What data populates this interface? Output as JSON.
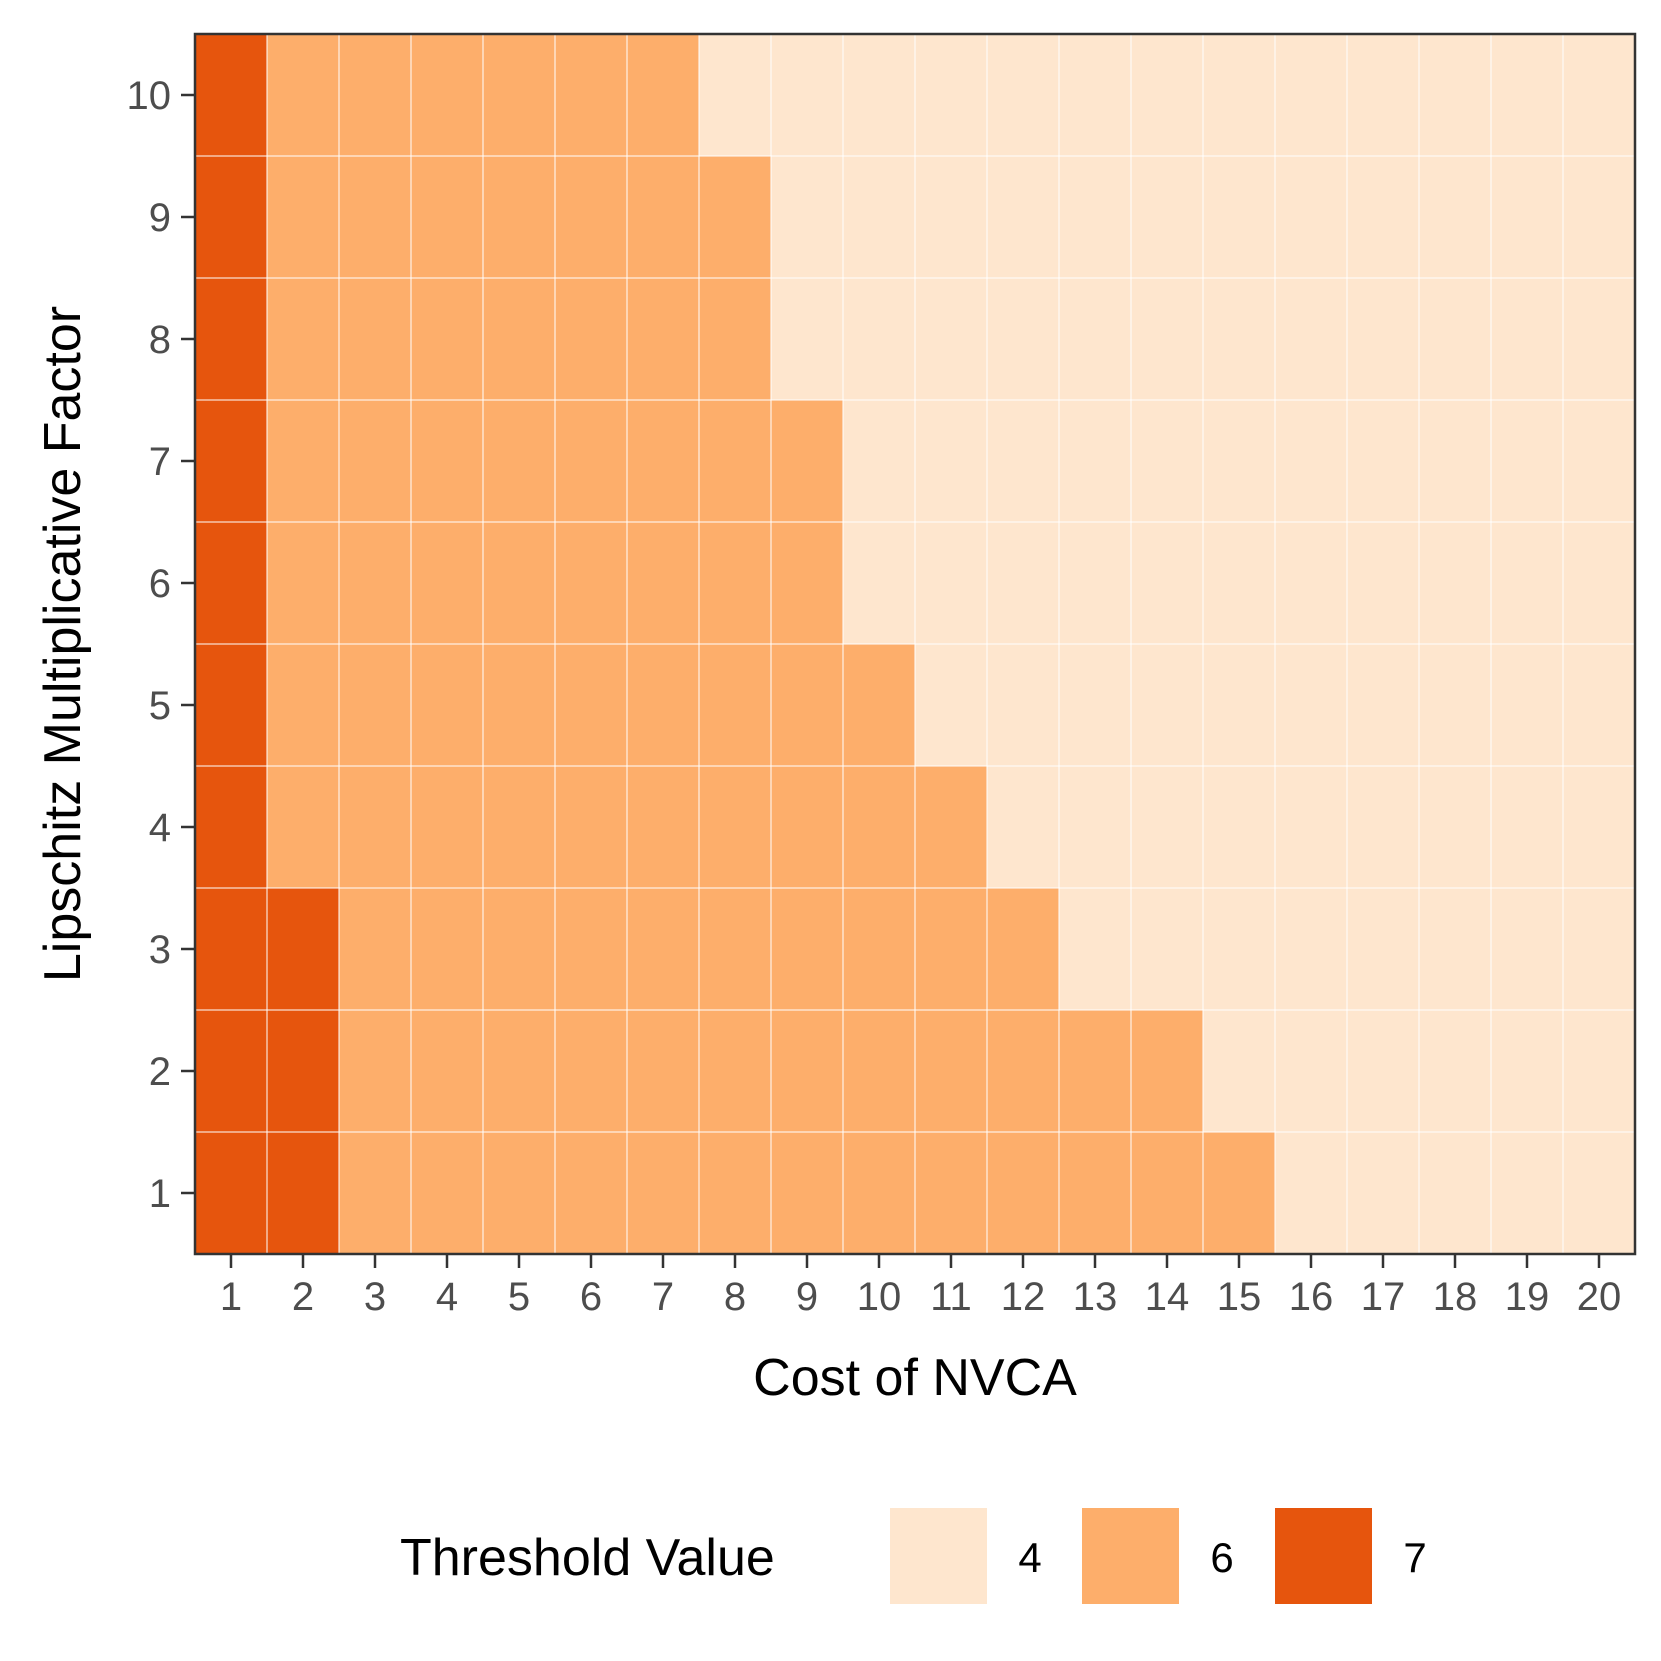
{
  "chart_data": {
    "type": "heatmap",
    "xlabel": "Cost of NVCA",
    "ylabel": "Lipschitz Multiplicative Factor",
    "x": [
      1,
      2,
      3,
      4,
      5,
      6,
      7,
      8,
      9,
      10,
      11,
      12,
      13,
      14,
      15,
      16,
      17,
      18,
      19,
      20
    ],
    "y": [
      1,
      2,
      3,
      4,
      5,
      6,
      7,
      8,
      9,
      10
    ],
    "x_tick_labels": [
      "1",
      "2",
      "3",
      "4",
      "5",
      "6",
      "7",
      "8",
      "9",
      "10",
      "11",
      "12",
      "13",
      "14",
      "15",
      "16",
      "17",
      "18",
      "19",
      "20"
    ],
    "y_tick_labels": [
      "1",
      "2",
      "3",
      "4",
      "5",
      "6",
      "7",
      "8",
      "9",
      "10"
    ],
    "values": [
      [
        7,
        7,
        6,
        6,
        6,
        6,
        6,
        6,
        6,
        6,
        6,
        6,
        6,
        6,
        6,
        4,
        4,
        4,
        4,
        4
      ],
      [
        7,
        7,
        6,
        6,
        6,
        6,
        6,
        6,
        6,
        6,
        6,
        6,
        6,
        6,
        4,
        4,
        4,
        4,
        4,
        4
      ],
      [
        7,
        7,
        6,
        6,
        6,
        6,
        6,
        6,
        6,
        6,
        6,
        6,
        4,
        4,
        4,
        4,
        4,
        4,
        4,
        4
      ],
      [
        7,
        6,
        6,
        6,
        6,
        6,
        6,
        6,
        6,
        6,
        6,
        4,
        4,
        4,
        4,
        4,
        4,
        4,
        4,
        4
      ],
      [
        7,
        6,
        6,
        6,
        6,
        6,
        6,
        6,
        6,
        6,
        4,
        4,
        4,
        4,
        4,
        4,
        4,
        4,
        4,
        4
      ],
      [
        7,
        6,
        6,
        6,
        6,
        6,
        6,
        6,
        6,
        4,
        4,
        4,
        4,
        4,
        4,
        4,
        4,
        4,
        4,
        4
      ],
      [
        7,
        6,
        6,
        6,
        6,
        6,
        6,
        6,
        6,
        4,
        4,
        4,
        4,
        4,
        4,
        4,
        4,
        4,
        4,
        4
      ],
      [
        7,
        6,
        6,
        6,
        6,
        6,
        6,
        6,
        4,
        4,
        4,
        4,
        4,
        4,
        4,
        4,
        4,
        4,
        4,
        4
      ],
      [
        7,
        6,
        6,
        6,
        6,
        6,
        6,
        6,
        4,
        4,
        4,
        4,
        4,
        4,
        4,
        4,
        4,
        4,
        4,
        4
      ],
      [
        7,
        6,
        6,
        6,
        6,
        6,
        6,
        4,
        4,
        4,
        4,
        4,
        4,
        4,
        4,
        4,
        4,
        4,
        4,
        4
      ]
    ],
    "legend": {
      "title": "Threshold Value",
      "position": "bottom",
      "items": [
        {
          "label": "4",
          "value": 4,
          "color": "#fee6ce"
        },
        {
          "label": "6",
          "value": 6,
          "color": "#fdae6b"
        },
        {
          "label": "7",
          "value": 7,
          "color": "#e6550d"
        }
      ]
    },
    "grid": true
  },
  "colors": {
    "background": "#ffffff",
    "panel_border": "#333333",
    "grid_line": "#ffffff",
    "tick_color": "#333333",
    "tick_label_color": "#4d4d4d"
  }
}
